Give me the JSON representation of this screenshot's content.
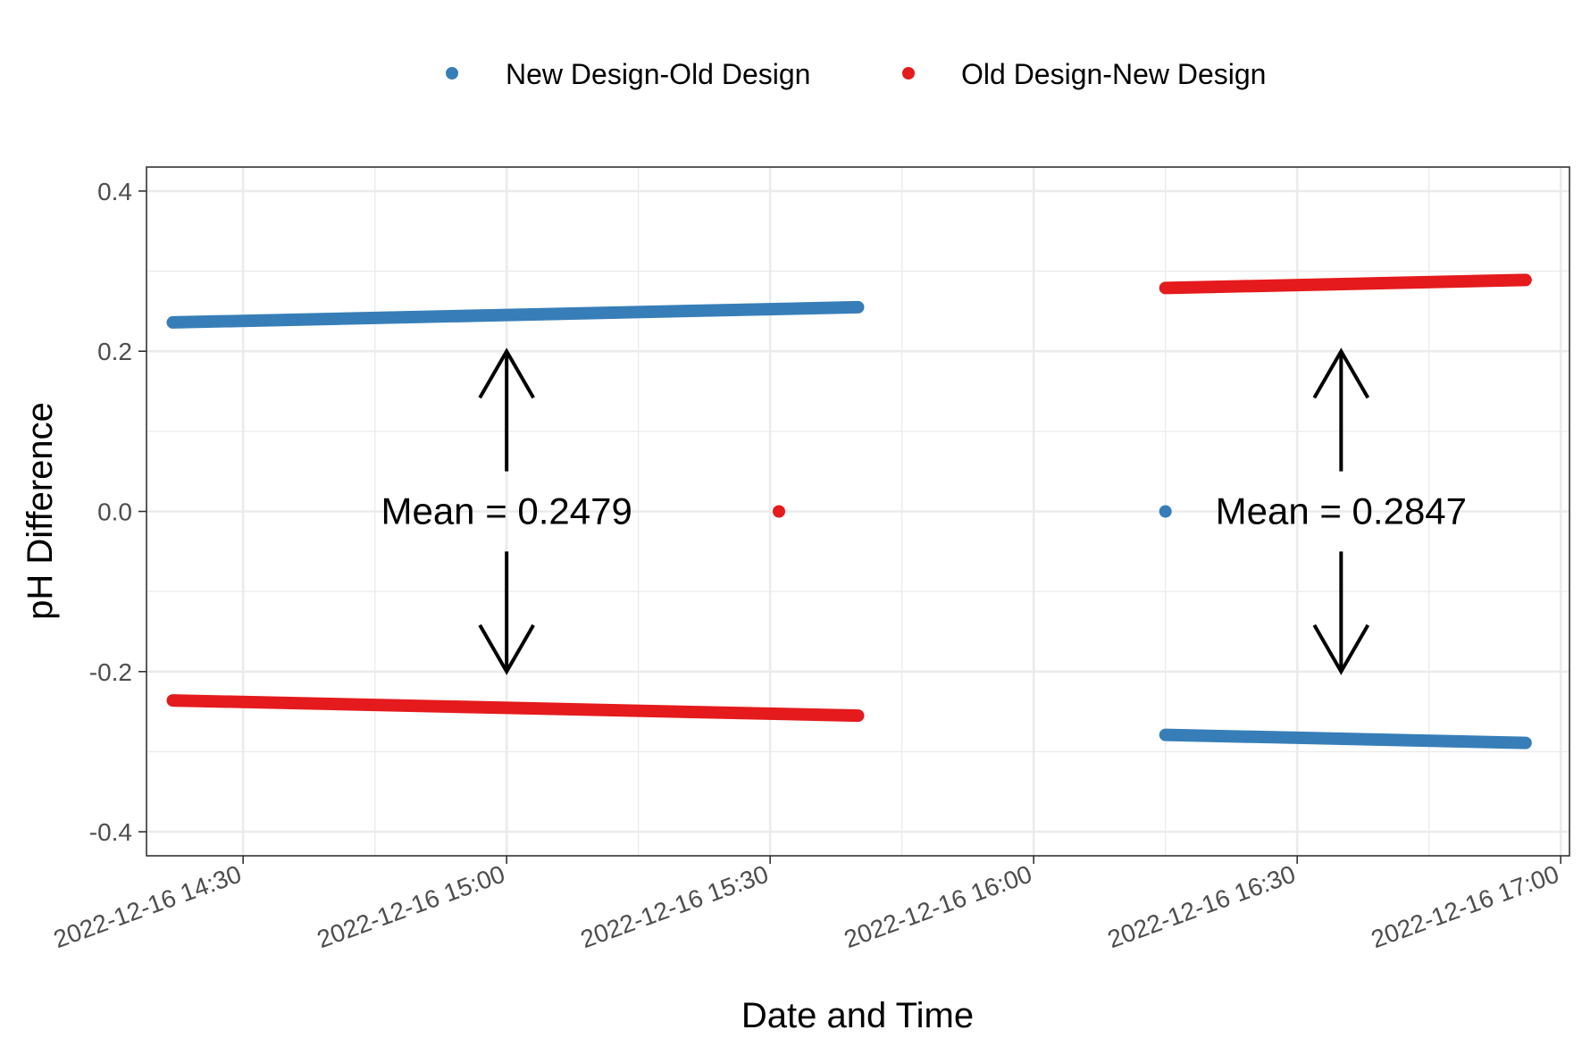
{
  "chart_data": {
    "type": "scatter",
    "title": "",
    "xlabel": "Date and Time",
    "ylabel": "pH Difference",
    "xlim": [
      "2022-12-16 14:19",
      "2022-12-16 17:01"
    ],
    "ylim": [
      -0.43,
      0.43
    ],
    "x_ticks": [
      "2022-12-16 14:30",
      "2022-12-16 15:00",
      "2022-12-16 15:30",
      "2022-12-16 16:00",
      "2022-12-16 16:30",
      "2022-12-16 17:00"
    ],
    "x_tick_labels": [
      "2022-12-16 14:30",
      "2022-12-16 15:00",
      "2022-12-16 15:30",
      "2022-12-16 16:00",
      "2022-12-16 16:30",
      "2022-12-16 17:00"
    ],
    "y_ticks": [
      -0.4,
      -0.2,
      0.0,
      0.2,
      0.4
    ],
    "y_tick_labels": [
      "-0.4",
      "-0.2",
      "0.0",
      "0.2",
      "0.4"
    ],
    "grid": true,
    "legend_position": "top",
    "series": [
      {
        "name": "New Design-Old Design",
        "color": "#377eb8",
        "segments": [
          {
            "x_start": "2022-12-16 14:22",
            "x_end": "2022-12-16 15:40",
            "y_start": 0.236,
            "y_end": 0.255
          },
          {
            "x_start": "2022-12-16 16:15",
            "x_end": "2022-12-16 16:56",
            "y_start": -0.279,
            "y_end": -0.289
          }
        ],
        "points": [
          {
            "x": "2022-12-16 16:15",
            "y": 0.0
          }
        ]
      },
      {
        "name": "Old Design-New Design",
        "color": "#e41a1c",
        "segments": [
          {
            "x_start": "2022-12-16 14:22",
            "x_end": "2022-12-16 15:40",
            "y_start": -0.236,
            "y_end": -0.255
          },
          {
            "x_start": "2022-12-16 16:15",
            "x_end": "2022-12-16 16:56",
            "y_start": 0.279,
            "y_end": 0.289
          }
        ],
        "points": [
          {
            "x": "2022-12-16 15:31",
            "y": 0.0
          }
        ]
      }
    ],
    "annotations": [
      {
        "text": "Mean = 0.2479",
        "x": "2022-12-16 15:00",
        "y": 0.0
      },
      {
        "text": "Mean = 0.2847",
        "x": "2022-12-16 16:35",
        "y": 0.0
      }
    ]
  }
}
